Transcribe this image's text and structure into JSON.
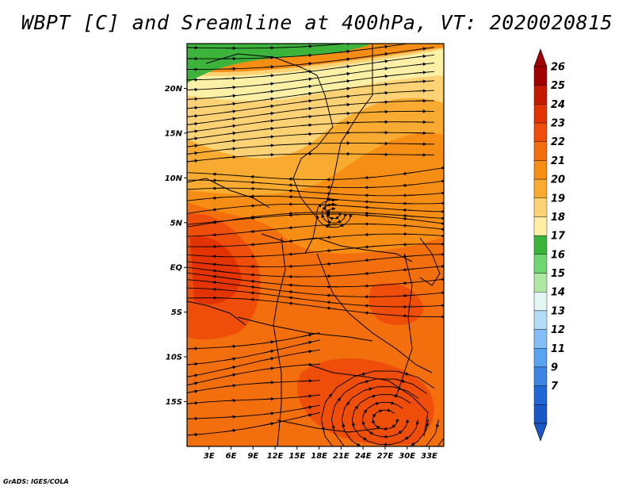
{
  "title": "WBPT [C] and Sreamline at 400hPa, VT: 2020020815",
  "credit": "GrADS: IGES/COLA",
  "map": {
    "lon_range": [
      0,
      35
    ],
    "lat_range": [
      -20,
      25
    ],
    "lat_labels": [
      "20N",
      "15N",
      "10N",
      "5N",
      "EQ",
      "5S",
      "10S",
      "15S"
    ],
    "lat_values": [
      20,
      15,
      10,
      5,
      0,
      -5,
      -10,
      -15
    ],
    "lon_labels": [
      "3E",
      "6E",
      "9E",
      "12E",
      "15E",
      "18E",
      "21E",
      "24E",
      "27E",
      "30E",
      "33E"
    ],
    "lon_values": [
      3,
      6,
      9,
      12,
      15,
      18,
      21,
      24,
      27,
      30,
      33
    ]
  },
  "colorbar": {
    "levels": [
      "26",
      "25",
      "24",
      "23",
      "22",
      "21",
      "20",
      "19",
      "18",
      "17",
      "16",
      "15",
      "14",
      "13",
      "12",
      "11",
      "9",
      "7"
    ],
    "colors": [
      "#a00000",
      "#c41b00",
      "#e23300",
      "#ef4e0a",
      "#f36f0e",
      "#f68e16",
      "#f8ab30",
      "#fcd274",
      "#fbf0a6",
      "#3cb43c",
      "#70d66f",
      "#aee8a3",
      "#e4f6f4",
      "#b3dcf7",
      "#83bff4",
      "#5aa3ee",
      "#3b85e4",
      "#2167d6",
      "#1c57c8"
    ],
    "top_color": "#a00000",
    "bottom_color": "#1c57c8"
  },
  "regions": {
    "green_band": "#3cb43c",
    "yellow_light": "#fbf0a6",
    "yellow": "#fcd274",
    "light_orange": "#f8ab30",
    "orange": "#f68e16",
    "dark_orange": "#f36f0e",
    "red_orange": "#ef4e0a",
    "red": "#e23300"
  }
}
